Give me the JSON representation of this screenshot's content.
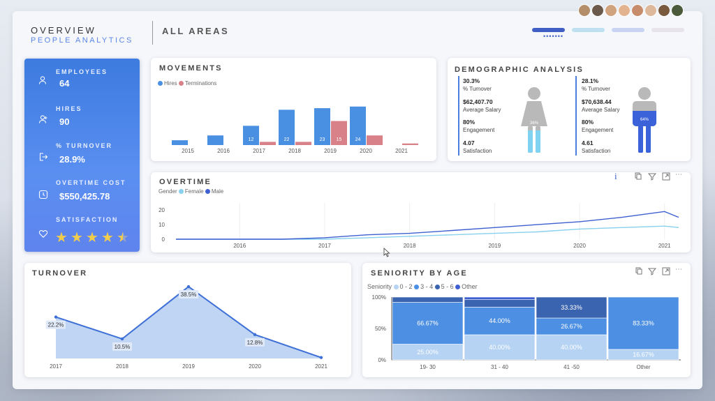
{
  "header": {
    "title": "OVERVIEW",
    "subtitle": "PEOPLE ANALYTICS",
    "area_filter": "ALL AREAS",
    "page_dots": "•••••••",
    "nav_pills": [
      "#3f5fc4",
      "#bfe0ee",
      "#c9d3f2",
      "#e6e3ea"
    ]
  },
  "kpis": {
    "employees_label": "EMPLOYEES",
    "employees_value": "64",
    "hires_label": "HIRES",
    "hires_value": "90",
    "turnover_label": "% TURNOVER",
    "turnover_value": "28.9%",
    "overtime_cost_label": "OVERTIME COST",
    "overtime_cost_value": "$550,425.78",
    "satisfaction_label": "SATISFACTION",
    "satisfaction_rating": 4.5,
    "icons": [
      "user-icon",
      "user-add-icon",
      "exit-icon",
      "clock-icon",
      "heart-icon"
    ]
  },
  "movements": {
    "title": "MOVEMENTS",
    "chart_data": {
      "type": "bar",
      "categories": [
        "2015",
        "2016",
        "2017",
        "2018",
        "2019",
        "2020",
        "2021"
      ],
      "series": [
        {
          "name": "Hires",
          "values": [
            3,
            6,
            12,
            22,
            23,
            24,
            0
          ],
          "labels": [
            "",
            "",
            "12",
            "22",
            "23",
            "24",
            ""
          ],
          "color": "#4a90e2"
        },
        {
          "name": "Terminations",
          "values": [
            0,
            0,
            2,
            2,
            15,
            6,
            1
          ],
          "labels": [
            "",
            "",
            "",
            "",
            "15",
            "",
            ""
          ],
          "color": "#d98189"
        }
      ]
    }
  },
  "demographic": {
    "title": "DEMOGRAPHIC ANALYSIS",
    "female": {
      "turnover": "30.3%",
      "turnover_label": "% Turnover",
      "salary": "$62,407.70",
      "salary_label": "Average Salary",
      "engagement": "80%",
      "engagement_label": "Engagement",
      "satisfaction": "4.07",
      "satisfaction_label": "Satisfaction",
      "fill_label": "36%",
      "fill": 0.36
    },
    "male": {
      "turnover": "28.1%",
      "turnover_label": "% Turnover",
      "salary": "$70,638.44",
      "salary_label": "Average Salary",
      "engagement": "80%",
      "engagement_label": "Engagement",
      "satisfaction": "4.61",
      "satisfaction_label": "Satisfaction",
      "fill_label": "64%",
      "fill": 0.64
    }
  },
  "overtime": {
    "title": "OVERTIME",
    "legend_title": "Gender",
    "info_icon": "i",
    "chart_data": {
      "type": "line",
      "x": [
        "2015-04",
        "2016-01",
        "2016-07",
        "2017-01",
        "2017-07",
        "2018-01",
        "2018-07",
        "2019-01",
        "2019-07",
        "2020-01",
        "2020-07",
        "2021-01",
        "2021-03"
      ],
      "series": [
        {
          "name": "Female",
          "values": [
            0,
            0,
            0,
            0,
            1,
            2,
            3,
            4,
            5,
            7,
            8,
            9,
            8
          ],
          "color": "#87d0ee"
        },
        {
          "name": "Male",
          "values": [
            0,
            0,
            0,
            1,
            3,
            4,
            6,
            8,
            10,
            12,
            15,
            19,
            15
          ],
          "color": "#3d5fd0"
        }
      ],
      "xticks": [
        "2016",
        "2017",
        "2018",
        "2019",
        "2020",
        "2021"
      ],
      "yticks": [
        "0",
        "10",
        "20"
      ],
      "ylim": [
        0,
        22
      ]
    }
  },
  "turnover": {
    "title": "TURNOVER",
    "chart_data": {
      "type": "area",
      "categories": [
        "2017",
        "2018",
        "2019",
        "2020",
        "2021"
      ],
      "values": [
        22.2,
        10.5,
        38.5,
        12.8,
        0.5
      ],
      "labels": [
        "22.2%",
        "10.5%",
        "38.5%",
        "12.8%",
        ""
      ],
      "ylim": [
        0,
        40
      ]
    }
  },
  "seniority": {
    "title": "SENIORITY BY AGE",
    "legend_title": "Seniority",
    "chart_data": {
      "type": "bar",
      "stacked": true,
      "categories": [
        "19- 30",
        "31 - 40",
        "41 -50",
        "Other"
      ],
      "series": [
        {
          "name": "0 - 2",
          "values": [
            25.0,
            40.0,
            40.0,
            16.67
          ],
          "labels": [
            "25.00%",
            "40.00%",
            "40.00%",
            "16.67%"
          ],
          "color": "#b6d3f4"
        },
        {
          "name": "3 - 4",
          "values": [
            66.67,
            44.0,
            26.67,
            83.33
          ],
          "labels": [
            "66.67%",
            "44.00%",
            "26.67%",
            "83.33%"
          ],
          "color": "#4d8fe2"
        },
        {
          "name": "5 - 6",
          "values": [
            8.33,
            12.0,
            33.33,
            0
          ],
          "labels": [
            "",
            "",
            "33.33%",
            ""
          ],
          "color": "#3b64b0"
        },
        {
          "name": "Other",
          "values": [
            0,
            4.0,
            0,
            0
          ],
          "labels": [
            "",
            "",
            "",
            ""
          ],
          "color": "#3f5fd0"
        }
      ],
      "yticks": [
        "0%",
        "50%",
        "100%"
      ]
    }
  }
}
